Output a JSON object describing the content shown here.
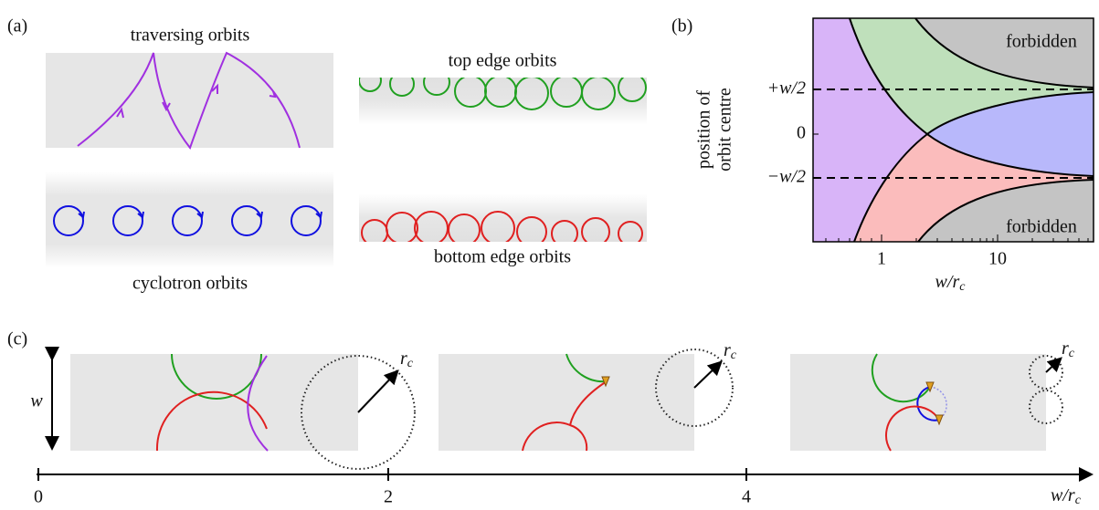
{
  "panel_a": {
    "label": "(a)",
    "traversing": "traversing orbits",
    "top_edge": "top edge orbits",
    "cyclotron": "cyclotron orbits",
    "bottom_edge": "bottom edge orbits"
  },
  "panel_b": {
    "label": "(b)",
    "y_label": [
      "position of",
      "orbit centre"
    ],
    "y_ticks": [
      "+w/2",
      "0",
      "−w/2"
    ],
    "x_ticks": [
      "1",
      "10"
    ],
    "x_label": {
      "main": "w/r",
      "sub": "c"
    },
    "forbidden": [
      "forbidden",
      "forbidden"
    ]
  },
  "panel_c": {
    "label": "(c)",
    "width_label": "w",
    "radius_labels": [
      {
        "main": "r",
        "sub": "c"
      },
      {
        "main": "r",
        "sub": "c"
      },
      {
        "main": "r",
        "sub": "c"
      }
    ],
    "axis_ticks": [
      "0",
      "2",
      "4"
    ],
    "axis_label": {
      "main": "w/r",
      "sub": "c"
    }
  }
}
